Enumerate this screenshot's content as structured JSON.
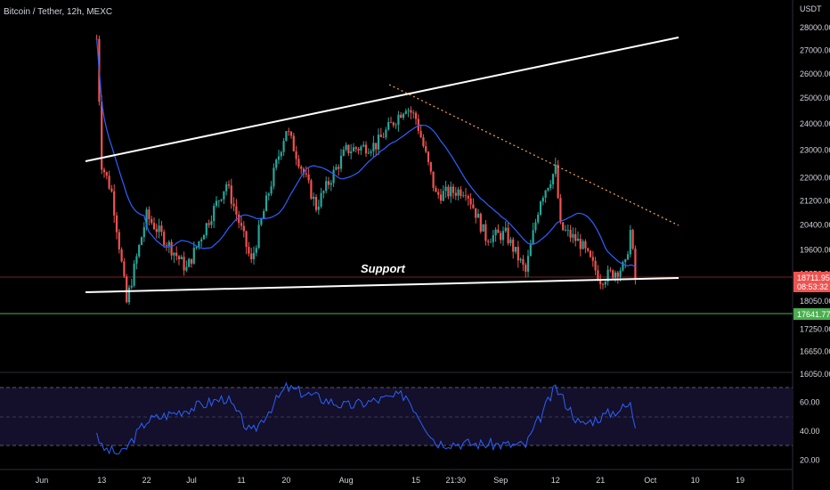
{
  "chart_data": {
    "type": "candlestick",
    "symbol": "Bitcoin / Tether, 12h, MEXC",
    "currency": "USDT",
    "annotation": "Support",
    "colors": {
      "up": "#26a69a",
      "down": "#ef5350",
      "ma": "#2962ff",
      "trendline": "#ffffff",
      "resistance_dotted": "#f7a64a",
      "horizontal_level": "#4caf50",
      "current_price_tag": "#ef5350",
      "rsi_line": "#2962ff",
      "background": "#000000"
    },
    "price_axis": {
      "ticks": [
        "28000.00",
        "27000.00",
        "26000.00",
        "25000.00",
        "24000.00",
        "23000.00",
        "22000.00",
        "21200.00",
        "20400.00",
        "19600.00",
        "18850.00",
        "18050.00",
        "17250.00",
        "16650.00",
        "16050.00"
      ],
      "scale": "log"
    },
    "time_axis": {
      "ticks": [
        "Jun",
        "13",
        "22",
        "Jul",
        "11",
        "20",
        "Aug",
        "15",
        "21:30",
        "Sep",
        "12",
        "21",
        "Oct",
        "10",
        "19"
      ]
    },
    "current_price": {
      "value": "18711.95",
      "countdown": "08:53:32"
    },
    "level_tag": "17641.77",
    "candles_close_approx": [
      {
        "date": "2022-06-12",
        "close": 27500
      },
      {
        "date": "2022-06-13",
        "close": 22500
      },
      {
        "date": "2022-06-15",
        "close": 21500
      },
      {
        "date": "2022-06-18",
        "close": 18000
      },
      {
        "date": "2022-06-22",
        "close": 20700
      },
      {
        "date": "2022-06-30",
        "close": 19000
      },
      {
        "date": "2022-07-08",
        "close": 21800
      },
      {
        "date": "2022-07-13",
        "close": 19200
      },
      {
        "date": "2022-07-20",
        "close": 23800
      },
      {
        "date": "2022-07-26",
        "close": 21000
      },
      {
        "date": "2022-08-01",
        "close": 23000
      },
      {
        "date": "2022-08-07",
        "close": 23200
      },
      {
        "date": "2022-08-13",
        "close": 24700
      },
      {
        "date": "2022-08-15",
        "close": 24200
      },
      {
        "date": "2022-08-19",
        "close": 21400
      },
      {
        "date": "2022-08-25",
        "close": 21600
      },
      {
        "date": "2022-08-29",
        "close": 20000
      },
      {
        "date": "2022-09-02",
        "close": 20100
      },
      {
        "date": "2022-09-06",
        "close": 18900
      },
      {
        "date": "2022-09-09",
        "close": 21300
      },
      {
        "date": "2022-09-12",
        "close": 22300
      },
      {
        "date": "2022-09-13",
        "close": 20300
      },
      {
        "date": "2022-09-17",
        "close": 19800
      },
      {
        "date": "2022-09-21",
        "close": 18700
      },
      {
        "date": "2022-09-26",
        "close": 19100
      },
      {
        "date": "2022-09-27",
        "close": 20200
      },
      {
        "date": "2022-09-28",
        "close": 18712
      }
    ],
    "rsi_axis": {
      "ticks": [
        "60.00",
        "40.00",
        "20.00"
      ],
      "band": [
        30,
        70
      ]
    },
    "rsi_series": [
      {
        "date": "2022-06-12",
        "value": 40
      },
      {
        "date": "2022-06-13",
        "value": 28
      },
      {
        "date": "2022-06-17",
        "value": 24
      },
      {
        "date": "2022-06-22",
        "value": 47
      },
      {
        "date": "2022-07-08",
        "value": 63
      },
      {
        "date": "2022-07-13",
        "value": 38
      },
      {
        "date": "2022-07-20",
        "value": 70
      },
      {
        "date": "2022-08-01",
        "value": 57
      },
      {
        "date": "2022-08-13",
        "value": 65
      },
      {
        "date": "2022-08-19",
        "value": 32
      },
      {
        "date": "2022-09-06",
        "value": 30
      },
      {
        "date": "2022-09-12",
        "value": 70
      },
      {
        "date": "2022-09-17",
        "value": 44
      },
      {
        "date": "2022-09-27",
        "value": 58
      },
      {
        "date": "2022-09-28",
        "value": 44
      }
    ]
  }
}
